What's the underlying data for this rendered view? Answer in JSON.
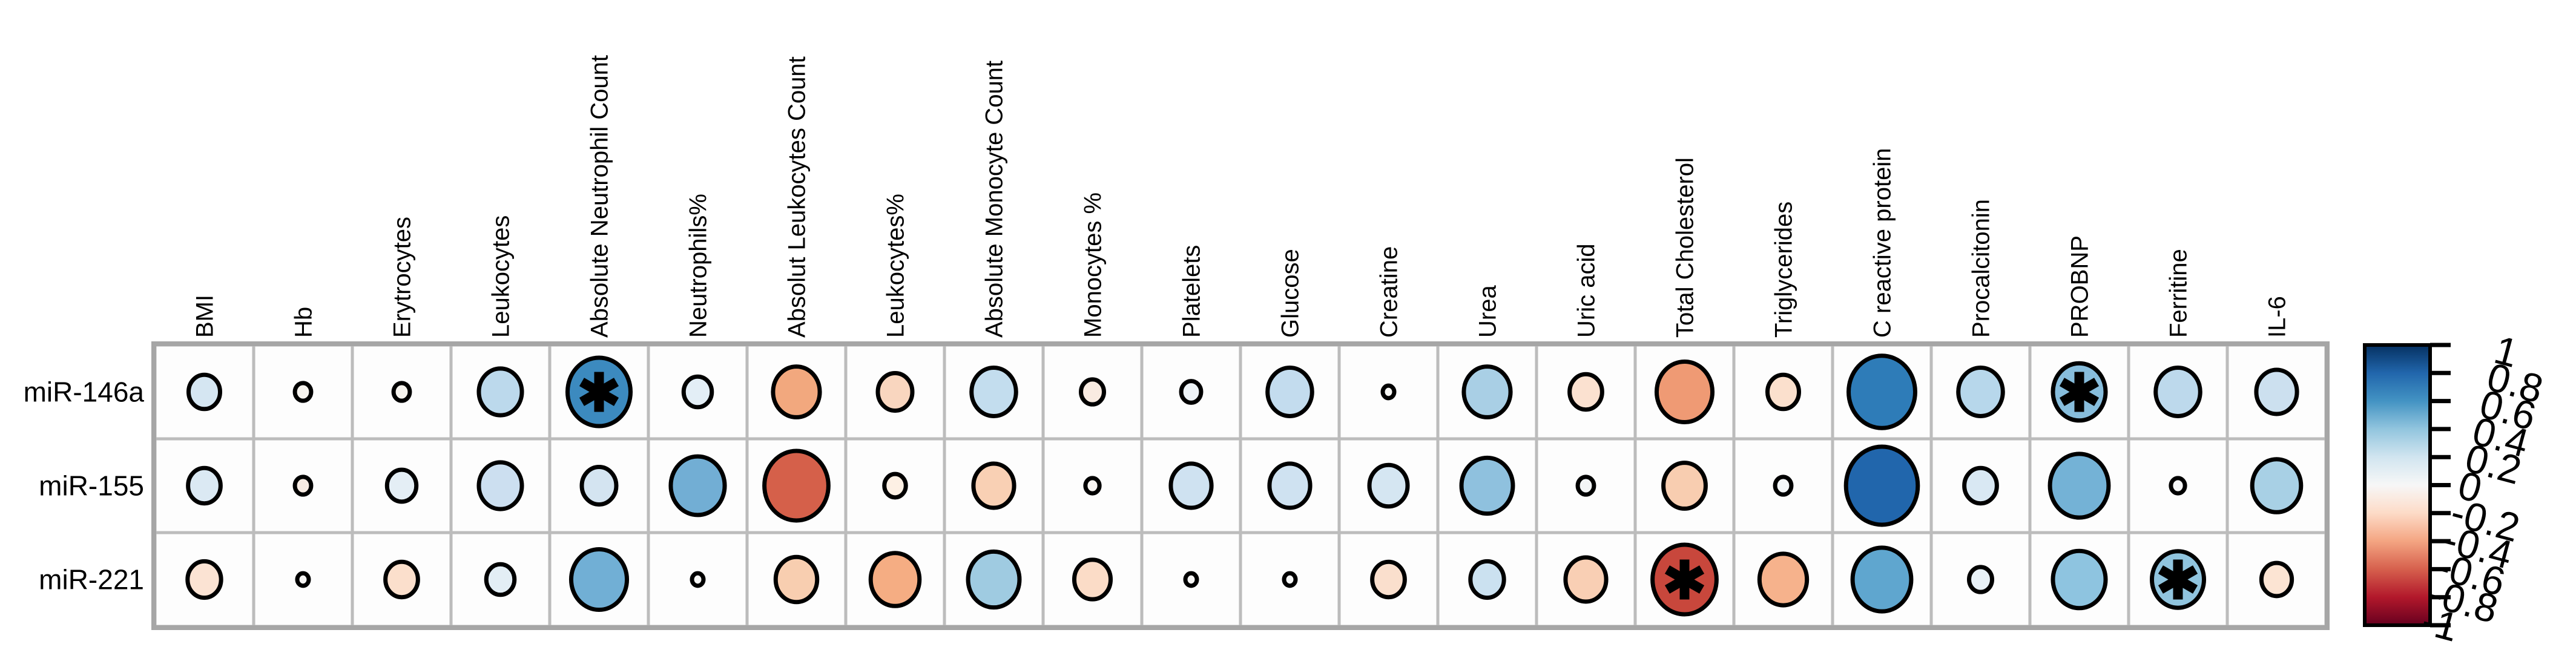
{
  "figure": {
    "kind": "correlation-bubble-plot",
    "rows": [
      "miR-146a",
      "miR-155",
      "miR-221"
    ],
    "columns": [
      "BMI",
      "Hb",
      "Erytrocytes",
      "Leukocytes",
      "Absolute Neutrophil Count",
      "Neutrophils%",
      "Absolut Leukocytes Count",
      "Leukocytes%",
      "Absolute Monocyte Count",
      "Monocytes %",
      "Platelets",
      "Glucose",
      "Creatine",
      "Urea",
      "Uric acid",
      "Total Cholesterol",
      "Triglycerides",
      "C reactive protein",
      "Procalcitonin",
      "PROBNP",
      "Ferritine",
      "IL-6"
    ],
    "significance_marker": "*",
    "grid_line_color": "#bcbcbc",
    "grid_outer_color": "#a6a6a6",
    "cell_fill": "#fdfdfd",
    "circle_outline": "#000000"
  },
  "chart_data": {
    "type": "heatmap",
    "subtype": "correlogram-circles",
    "title": "",
    "xlabel": "",
    "ylabel": "",
    "x_categories": [
      "BMI",
      "Hb",
      "Erytrocytes",
      "Leukocytes",
      "Absolute Neutrophil Count",
      "Neutrophils%",
      "Absolut Leukocytes Count",
      "Leukocytes%",
      "Absolute Monocyte Count",
      "Monocytes %",
      "Platelets",
      "Glucose",
      "Creatine",
      "Urea",
      "Uric acid",
      "Total Cholesterol",
      "Triglycerides",
      "C reactive protein",
      "Procalcitonin",
      "PROBNP",
      "Ferritine",
      "IL-6"
    ],
    "y_categories": [
      "miR-146a",
      "miR-155",
      "miR-221"
    ],
    "value_range": [
      -1,
      1
    ],
    "legend_position": "right",
    "grid": true,
    "series": [
      {
        "name": "miR-146a",
        "values": [
          0.15,
          0.04,
          0.04,
          0.28,
          0.6,
          0.12,
          -0.33,
          -0.18,
          0.3,
          -0.08,
          0.06,
          0.3,
          0.02,
          0.33,
          -0.16,
          -0.47,
          -0.15,
          0.67,
          0.3,
          0.42,
          0.3,
          0.25
        ],
        "colors": [
          "#d5e6f2",
          "#f6f3ee",
          "#f6f3ee",
          "#bcd9ec",
          "#3c8abf",
          "#e3eef6",
          "#f2a87e",
          "#f9d6bf",
          "#c3ddee",
          "#f9ebe1",
          "#eef3f7",
          "#c3dcee",
          "#f6f6f4",
          "#a9cfe5",
          "#fbe1d0",
          "#ef9a74",
          "#fbe0cd",
          "#2e7cb8",
          "#b7d7eb",
          "#87bddc",
          "#bdd9ec",
          "#cce0ef"
        ],
        "significant": [
          false,
          false,
          false,
          false,
          true,
          false,
          false,
          false,
          false,
          false,
          false,
          false,
          false,
          false,
          false,
          false,
          false,
          false,
          false,
          true,
          false,
          false
        ]
      },
      {
        "name": "miR-155",
        "values": [
          0.16,
          -0.04,
          0.13,
          0.28,
          0.18,
          0.44,
          -0.62,
          -0.07,
          -0.25,
          -0.03,
          0.25,
          0.25,
          0.22,
          0.4,
          0.04,
          -0.27,
          0.04,
          0.78,
          0.16,
          0.52,
          0.03,
          0.36
        ],
        "colors": [
          "#dbe9f3",
          "#f8ece4",
          "#e4eef5",
          "#ccdff0",
          "#d4e4f1",
          "#72aed4",
          "#d5604a",
          "#fdf0e4",
          "#f9d0b4",
          "#f8f5f2",
          "#cfe2f1",
          "#cfe2f1",
          "#d5e6f2",
          "#8fc1de",
          "#f3f5f6",
          "#f8cdb0",
          "#f4f7f9",
          "#2166ac",
          "#d9e8f3",
          "#74b2d6",
          "#f6f7f8",
          "#a8d0e5"
        ],
        "significant": [
          false,
          false,
          false,
          false,
          false,
          false,
          false,
          false,
          false,
          false,
          false,
          false,
          false,
          false,
          false,
          false,
          false,
          false,
          false,
          false,
          false,
          false
        ]
      },
      {
        "name": "miR-221",
        "values": [
          -0.17,
          -0.02,
          -0.16,
          0.12,
          0.47,
          0.02,
          -0.26,
          -0.36,
          0.4,
          -0.2,
          -0.02,
          0.02,
          -0.16,
          0.17,
          -0.25,
          -0.62,
          -0.34,
          0.52,
          0.08,
          0.42,
          0.41,
          -0.14
        ],
        "colors": [
          "#fbe3d3",
          "#f6f5f4",
          "#fbdfcc",
          "#e3eef5",
          "#71afd5",
          "#f7f7f6",
          "#f8ceb0",
          "#f5ad83",
          "#9fcbe1",
          "#fbdcc7",
          "#f8f7f6",
          "#f6f7f7",
          "#fadfcd",
          "#cbe1f0",
          "#f9cfb4",
          "#c8473c",
          "#f6b28c",
          "#5fa6cf",
          "#e8f1f7",
          "#8ec4e0",
          "#90c4de",
          "#fce4d3"
        ],
        "significant": [
          false,
          false,
          false,
          false,
          false,
          false,
          false,
          false,
          false,
          false,
          false,
          false,
          false,
          false,
          false,
          true,
          false,
          false,
          false,
          false,
          true,
          false
        ]
      }
    ],
    "colorbar": {
      "tick_labels": [
        "1",
        "0.8",
        "0.6",
        "0.4",
        "0.2",
        "0",
        "-0.2",
        "-0.4",
        "-0.6",
        "-0.8",
        "-1"
      ],
      "colors_top_to_bottom": [
        "#053061",
        "#2166ac",
        "#4393c3",
        "#92c5de",
        "#d1e5f0",
        "#f7f7f7",
        "#fddbc7",
        "#f4a582",
        "#d6604d",
        "#b2182b",
        "#67001f"
      ]
    }
  }
}
